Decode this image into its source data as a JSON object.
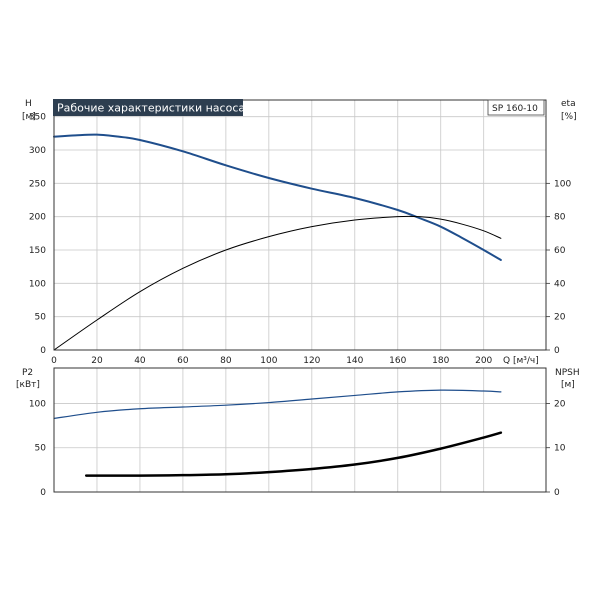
{
  "chart_data": [
    {
      "type": "line",
      "title": "Рабочие характеристики насоса",
      "model": "SP 160-10",
      "xlabel": "Q [м³/ч]",
      "xlim": [
        0,
        229
      ],
      "x_ticks": [
        0,
        20,
        40,
        60,
        80,
        100,
        120,
        140,
        160,
        180,
        200
      ],
      "left_axis": {
        "name": "H",
        "unit": "[м]",
        "ylim": [
          0,
          375
        ],
        "ticks": [
          0,
          50,
          100,
          150,
          200,
          250,
          300,
          350
        ]
      },
      "right_axis": {
        "name": "eta",
        "unit": "[%]",
        "ylim": [
          0,
          150
        ],
        "ticks": [
          0,
          20,
          40,
          60,
          80,
          100
        ]
      },
      "grid": true,
      "series": [
        {
          "axis": "left",
          "color": "#1f4e8c",
          "width": 2,
          "x": [
            0,
            10,
            20,
            30,
            40,
            60,
            80,
            100,
            120,
            140,
            160,
            170,
            180,
            190,
            200,
            208
          ],
          "y": [
            320,
            322,
            323,
            320,
            315,
            298,
            277,
            258,
            242,
            228,
            210,
            198,
            185,
            168,
            150,
            135
          ]
        },
        {
          "axis": "right",
          "color": "#000000",
          "width": 1,
          "x": [
            0,
            20,
            40,
            60,
            80,
            100,
            120,
            140,
            160,
            170,
            180,
            190,
            200,
            208
          ],
          "y": [
            0,
            18,
            35,
            49,
            60,
            68,
            74,
            78,
            80,
            80,
            78.5,
            75.5,
            71.5,
            67
          ]
        }
      ]
    },
    {
      "type": "line",
      "xlim": [
        0,
        229
      ],
      "left_axis": {
        "name": "P2",
        "unit": "[кВт]",
        "ylim": [
          0,
          140
        ],
        "ticks": [
          0,
          50,
          100
        ]
      },
      "right_axis": {
        "name": "NPSH",
        "unit": "[м]",
        "ylim": [
          0,
          28
        ],
        "ticks": [
          0,
          10,
          20
        ]
      },
      "grid": true,
      "series": [
        {
          "axis": "left",
          "color": "#1f4e8c",
          "width": 1.2,
          "x": [
            0,
            20,
            40,
            60,
            80,
            100,
            120,
            140,
            160,
            180,
            200,
            208
          ],
          "y": [
            83,
            90,
            94,
            96,
            98,
            101,
            105,
            109,
            113,
            115,
            114,
            113
          ]
        },
        {
          "axis": "right",
          "color": "#000000",
          "width": 2.5,
          "x": [
            15,
            40,
            60,
            80,
            100,
            120,
            140,
            160,
            180,
            200,
            208
          ],
          "y": [
            3.7,
            3.7,
            3.8,
            4.0,
            4.5,
            5.2,
            6.2,
            7.7,
            9.8,
            12.3,
            13.4
          ]
        }
      ]
    }
  ]
}
